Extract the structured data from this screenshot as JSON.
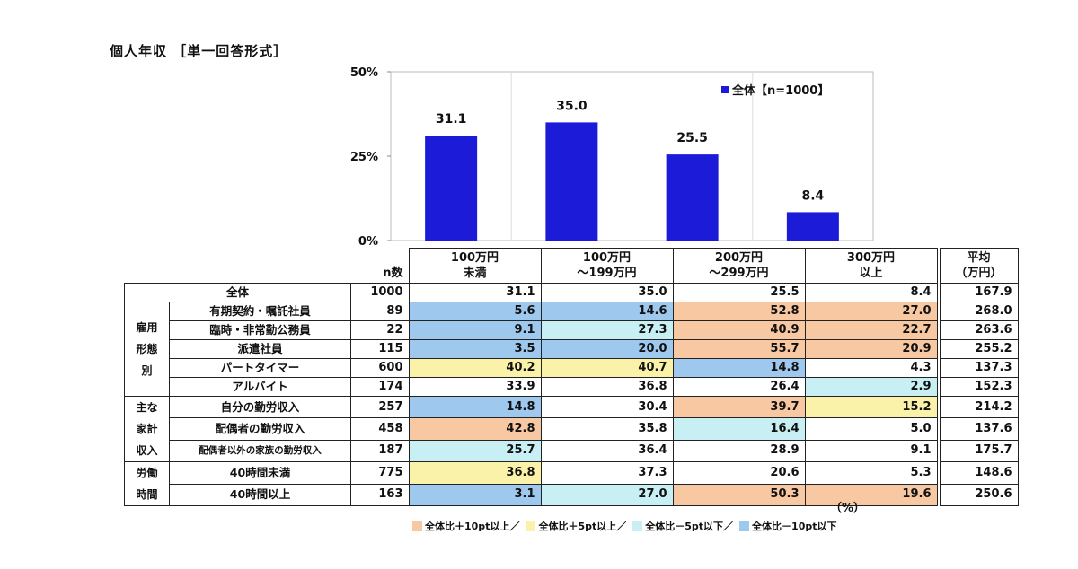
{
  "title": "個人年収 ［単一回答形式］",
  "chart_data": {
    "type": "bar",
    "categories": [
      "100万円未満",
      "100万円～199万円",
      "200万円～299万円",
      "300万円以上"
    ],
    "series": [
      {
        "name": "全体【n=1000】",
        "values": [
          31.1,
          35.0,
          25.5,
          8.4
        ]
      }
    ],
    "ylim": [
      0,
      50
    ],
    "yticks": [
      "50%",
      "25%",
      "0%"
    ],
    "ytick_values": [
      50,
      25,
      0
    ],
    "bar_color": "#1c1cd8",
    "grid": false,
    "legend_position": "top-right"
  },
  "table": {
    "n_header": "n数",
    "col_headers": [
      [
        "100万円",
        "未満"
      ],
      [
        "100万円",
        "～199万円"
      ],
      [
        "200万円",
        "～299万円"
      ],
      [
        "300万円",
        "以上"
      ]
    ],
    "avg_header": [
      "平均",
      "（万円）"
    ],
    "groups": [
      {
        "label": "",
        "rows": [
          {
            "label": "全体",
            "n": "1000",
            "values": [
              "31.1",
              "35.0",
              "25.5",
              "8.4"
            ],
            "hl": [
              "",
              "",
              "",
              ""
            ],
            "avg": "167.9"
          }
        ]
      },
      {
        "label": "雇用形態別",
        "label_lines": [
          "雇用",
          "形態",
          "別"
        ],
        "rows": [
          {
            "label": "有期契約・嘱託社員",
            "n": "89",
            "values": [
              "5.6",
              "14.6",
              "52.8",
              "27.0"
            ],
            "hl": [
              "m10",
              "m10",
              "p10",
              "p10"
            ],
            "avg": "268.0"
          },
          {
            "label": "臨時・非常勤公務員",
            "n": "22",
            "values": [
              "9.1",
              "27.3",
              "40.9",
              "22.7"
            ],
            "hl": [
              "m10",
              "m5",
              "p10",
              "p10"
            ],
            "avg": "263.6"
          },
          {
            "label": "派遣社員",
            "n": "115",
            "values": [
              "3.5",
              "20.0",
              "55.7",
              "20.9"
            ],
            "hl": [
              "m10",
              "m10",
              "p10",
              "p10"
            ],
            "avg": "255.2"
          },
          {
            "label": "パートタイマー",
            "n": "600",
            "values": [
              "40.2",
              "40.7",
              "14.8",
              "4.3"
            ],
            "hl": [
              "p5",
              "p5",
              "m10",
              ""
            ],
            "avg": "137.3"
          },
          {
            "label": "アルバイト",
            "n": "174",
            "values": [
              "33.9",
              "36.8",
              "26.4",
              "2.9"
            ],
            "hl": [
              "",
              "",
              "",
              "m5"
            ],
            "avg": "152.3"
          }
        ]
      },
      {
        "label": "主な家計収入",
        "label_lines": [
          "主な",
          "家計",
          "収入"
        ],
        "rows": [
          {
            "label": "自分の勤労収入",
            "n": "257",
            "values": [
              "14.8",
              "30.4",
              "39.7",
              "15.2"
            ],
            "hl": [
              "m10",
              "",
              "p10",
              "p5"
            ],
            "avg": "214.2"
          },
          {
            "label": "配偶者の勤労収入",
            "n": "458",
            "values": [
              "42.8",
              "35.8",
              "16.4",
              "5.0"
            ],
            "hl": [
              "p10",
              "",
              "m5",
              ""
            ],
            "avg": "137.6"
          },
          {
            "label": "配偶者以外の家族の勤労収入",
            "n": "187",
            "values": [
              "25.7",
              "36.4",
              "28.9",
              "9.1"
            ],
            "hl": [
              "m5",
              "",
              "",
              ""
            ],
            "avg": "175.7",
            "small": true
          }
        ]
      },
      {
        "label": "労働時間",
        "label_lines": [
          "労働",
          "時間"
        ],
        "rows": [
          {
            "label": "40時間未満",
            "n": "775",
            "values": [
              "36.8",
              "37.3",
              "20.6",
              "5.3"
            ],
            "hl": [
              "p5",
              "",
              "",
              ""
            ],
            "avg": "148.6"
          },
          {
            "label": "40時間以上",
            "n": "163",
            "values": [
              "3.1",
              "27.0",
              "50.3",
              "19.6"
            ],
            "hl": [
              "m10",
              "m5",
              "p10",
              "p10"
            ],
            "avg": "250.6"
          }
        ]
      }
    ],
    "unit": "（%）"
  },
  "legend": [
    {
      "key": "p10",
      "label": "全体比＋10pt以上／",
      "color": "#f8c8a2"
    },
    {
      "key": "p5",
      "label": "全体比＋5pt以上／",
      "color": "#faf2a8"
    },
    {
      "key": "m5",
      "label": "全体比－5pt以下／",
      "color": "#c8f0f4"
    },
    {
      "key": "m10",
      "label": "全体比－10pt以下",
      "color": "#9ec8ee"
    }
  ]
}
